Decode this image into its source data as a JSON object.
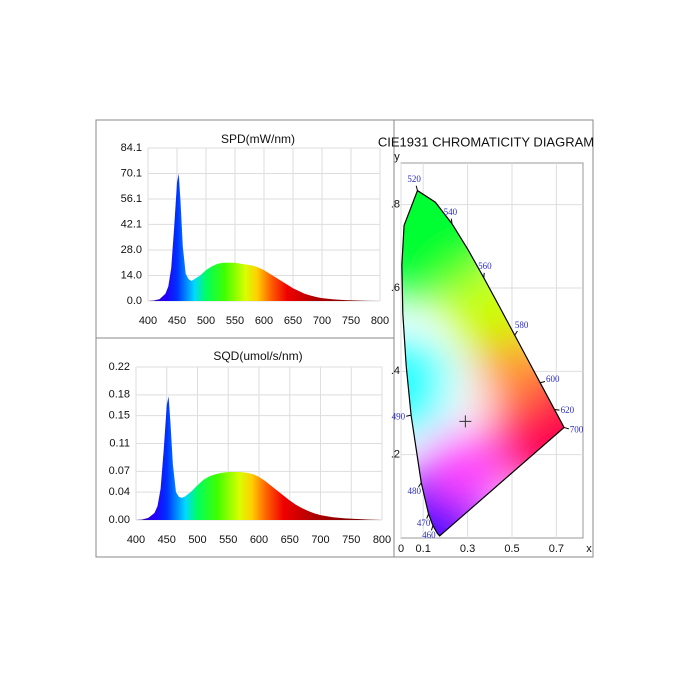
{
  "chart_data": [
    {
      "type": "area",
      "title": "SPD(mW/nm)",
      "x": [
        400,
        410,
        420,
        430,
        435,
        440,
        445,
        450,
        453,
        456,
        460,
        465,
        470,
        475,
        480,
        490,
        500,
        510,
        520,
        530,
        540,
        550,
        560,
        570,
        580,
        590,
        600,
        610,
        620,
        630,
        640,
        650,
        660,
        670,
        680,
        690,
        700,
        720,
        740,
        760,
        780,
        800
      ],
      "values": [
        0,
        0.3,
        1,
        4,
        8,
        18,
        40,
        65,
        70,
        55,
        30,
        15,
        12,
        11,
        12,
        14,
        17,
        19,
        20.5,
        21,
        21,
        21,
        20.5,
        20,
        19.5,
        18.5,
        17,
        15,
        13,
        11,
        9,
        7,
        5.5,
        4,
        3,
        2.2,
        1.6,
        0.9,
        0.5,
        0.3,
        0.1,
        0
      ],
      "xlim": [
        400,
        800
      ],
      "xticks": [
        400,
        450,
        500,
        550,
        600,
        650,
        700,
        750,
        800
      ],
      "ylim": [
        0,
        84.1
      ],
      "yticks": [
        {
          "value": 0,
          "label": "0.0"
        },
        {
          "value": 14,
          "label": "14.0"
        },
        {
          "value": 28,
          "label": "28.0"
        },
        42.1,
        56.1,
        70.1,
        84.1
      ],
      "grid": true
    },
    {
      "type": "area",
      "title": "SQD(umol/s/nm)",
      "x": [
        400,
        410,
        420,
        430,
        435,
        440,
        445,
        450,
        453,
        456,
        460,
        465,
        470,
        475,
        480,
        490,
        500,
        510,
        520,
        530,
        540,
        550,
        560,
        570,
        580,
        590,
        600,
        610,
        620,
        630,
        640,
        650,
        660,
        670,
        680,
        690,
        700,
        720,
        740,
        760,
        780,
        800
      ],
      "values": [
        0,
        0.0008,
        0.003,
        0.01,
        0.02,
        0.045,
        0.1,
        0.165,
        0.178,
        0.14,
        0.08,
        0.04,
        0.033,
        0.032,
        0.034,
        0.041,
        0.05,
        0.058,
        0.063,
        0.066,
        0.068,
        0.069,
        0.069,
        0.069,
        0.068,
        0.066,
        0.062,
        0.056,
        0.049,
        0.042,
        0.035,
        0.028,
        0.022,
        0.017,
        0.013,
        0.0095,
        0.007,
        0.004,
        0.0023,
        0.0014,
        0.0005,
        0
      ],
      "xlim": [
        400,
        800
      ],
      "xticks": [
        400,
        450,
        500,
        550,
        600,
        650,
        700,
        750,
        800
      ],
      "ylim": [
        0,
        0.22
      ],
      "yticks": [
        {
          "value": 0,
          "label": "0.00"
        },
        0.04,
        0.07,
        0.11,
        0.15,
        0.18,
        0.22
      ],
      "grid": true
    },
    {
      "type": "chromaticity",
      "title": "CIE1931 CHROMATICITY DIAGRAM",
      "x_label": "x",
      "y_label": "y",
      "xlim": [
        0,
        0.82
      ],
      "ylim": [
        0,
        0.9
      ],
      "xticks": [
        0,
        0.1,
        0.3,
        0.5,
        0.7
      ],
      "yticks": [
        {
          "value": 0.2,
          "label": ".2"
        },
        {
          "value": 0.4,
          "label": ".4"
        },
        {
          "value": 0.6,
          "label": ".6"
        },
        {
          "value": 0.8,
          "label": ".8"
        }
      ],
      "grid": true,
      "locus": {
        "x": [
          0.1741,
          0.1644,
          0.1566,
          0.144,
          0.1241,
          0.0913,
          0.0454,
          0.0235,
          0.0082,
          0.0039,
          0.0139,
          0.0743,
          0.1547,
          0.2296,
          0.3016,
          0.3731,
          0.4441,
          0.5125,
          0.5752,
          0.627,
          0.6658,
          0.6915,
          0.719,
          0.7347
        ],
        "y": [
          0.005,
          0.0109,
          0.0177,
          0.0297,
          0.0578,
          0.1327,
          0.295,
          0.4127,
          0.5384,
          0.6548,
          0.7502,
          0.8338,
          0.8059,
          0.7543,
          0.6923,
          0.6245,
          0.5547,
          0.4866,
          0.4242,
          0.3725,
          0.334,
          0.3083,
          0.2809,
          0.2653
        ]
      },
      "wavelength_labels": [
        {
          "wavelength": 460,
          "x": 0.144,
          "y": 0.0297
        },
        {
          "wavelength": 470,
          "x": 0.1241,
          "y": 0.0578
        },
        {
          "wavelength": 480,
          "x": 0.0913,
          "y": 0.1327
        },
        {
          "wavelength": 490,
          "x": 0.0454,
          "y": 0.295
        },
        {
          "wavelength": 520,
          "x": 0.0743,
          "y": 0.8338
        },
        {
          "wavelength": 540,
          "x": 0.2296,
          "y": 0.7543
        },
        {
          "wavelength": 560,
          "x": 0.3731,
          "y": 0.6245
        },
        {
          "wavelength": 580,
          "x": 0.5125,
          "y": 0.4866
        },
        {
          "wavelength": 600,
          "x": 0.627,
          "y": 0.3725
        },
        {
          "wavelength": 620,
          "x": 0.6915,
          "y": 0.3083
        },
        {
          "wavelength": 700,
          "x": 0.7347,
          "y": 0.2653
        }
      ],
      "point": {
        "x": 0.29,
        "y": 0.28
      }
    }
  ]
}
